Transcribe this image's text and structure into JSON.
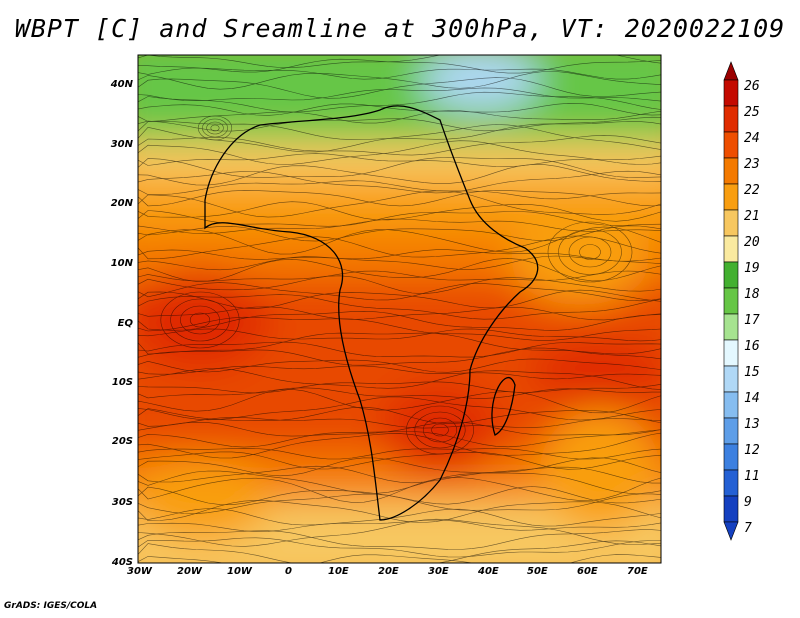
{
  "title": "WBPT [C] and Sreamline at 300hPa, VT: 2020022109",
  "footer": "GrADS: IGES/COLA",
  "map": {
    "lat_ticks": [
      "40N",
      "30N",
      "20N",
      "10N",
      "EQ",
      "10S",
      "20S",
      "30S",
      "40S"
    ],
    "lon_ticks": [
      "30W",
      "20W",
      "10W",
      "0",
      "10E",
      "20E",
      "30E",
      "40E",
      "50E",
      "60E",
      "70E"
    ],
    "lat_range": [
      -40,
      45
    ],
    "lon_range": [
      -30,
      75
    ]
  },
  "colorbar": {
    "labels": [
      "26",
      "25",
      "24",
      "23",
      "22",
      "21",
      "20",
      "19",
      "18",
      "17",
      "16",
      "15",
      "14",
      "13",
      "12",
      "11",
      "9",
      "7"
    ],
    "colors": {
      "26": "#9b0000",
      "25": "#c40a00",
      "24": "#e02c00",
      "23": "#ee4e00",
      "22": "#f47a00",
      "21": "#f99e10",
      "20": "#f7c760",
      "19": "#faeaa0",
      "18": "#43b030",
      "17": "#66c646",
      "16": "#a6e390",
      "15": "#e4f8ff",
      "14": "#b0d8f6",
      "13": "#86bdf0",
      "12": "#5e9ee8",
      "11": "#3c80e0",
      "9": "#2460d4",
      "7": "#1440c0"
    }
  }
}
